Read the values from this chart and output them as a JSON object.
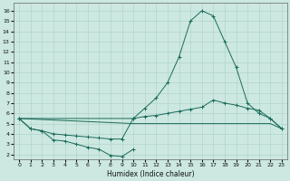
{
  "xlabel": "Humidex (Indice chaleur)",
  "xlim": [
    -0.5,
    23.5
  ],
  "ylim": [
    1.5,
    16.8
  ],
  "yticks": [
    2,
    3,
    4,
    5,
    6,
    7,
    8,
    9,
    10,
    11,
    12,
    13,
    14,
    15,
    16
  ],
  "xticks": [
    0,
    1,
    2,
    3,
    4,
    5,
    6,
    7,
    8,
    9,
    10,
    11,
    12,
    13,
    14,
    15,
    16,
    17,
    18,
    19,
    20,
    21,
    22,
    23
  ],
  "bg_color": "#cce8e0",
  "grid_color": "#aad0c8",
  "line_color": "#1a6b5a",
  "curves": [
    {
      "x": [
        0,
        1,
        2,
        3,
        4,
        5,
        6,
        7,
        8,
        9,
        10
      ],
      "y": [
        5.5,
        4.5,
        4.3,
        3.4,
        3.3,
        3.0,
        2.7,
        2.5,
        1.9,
        1.8,
        2.5
      ],
      "marker": true
    },
    {
      "x": [
        0,
        1,
        2,
        3,
        4,
        5,
        6,
        7,
        8,
        9,
        10,
        11,
        12,
        13,
        14,
        15,
        16,
        17,
        18,
        19,
        20,
        21,
        22,
        23
      ],
      "y": [
        5.5,
        4.5,
        4.3,
        4.0,
        3.9,
        3.8,
        3.7,
        3.6,
        3.5,
        3.5,
        5.5,
        6.5,
        7.5,
        9.0,
        11.5,
        15.0,
        16.0,
        15.5,
        13.0,
        10.5,
        7.0,
        6.0,
        5.5,
        4.5
      ],
      "marker": true
    },
    {
      "x": [
        0,
        10,
        11,
        12,
        13,
        14,
        15,
        16,
        17,
        18,
        19,
        20,
        21,
        22,
        23
      ],
      "y": [
        5.5,
        5.5,
        5.7,
        5.8,
        6.0,
        6.2,
        6.4,
        6.6,
        7.3,
        7.0,
        6.8,
        6.5,
        6.3,
        5.5,
        4.5
      ],
      "marker": true
    },
    {
      "x": [
        0,
        10,
        11,
        12,
        13,
        14,
        15,
        16,
        17,
        18,
        19,
        20,
        21,
        22,
        23
      ],
      "y": [
        5.5,
        5.0,
        5.0,
        5.0,
        5.0,
        5.0,
        5.0,
        5.0,
        5.0,
        5.0,
        5.0,
        5.0,
        5.0,
        5.0,
        4.5
      ],
      "marker": false
    }
  ]
}
